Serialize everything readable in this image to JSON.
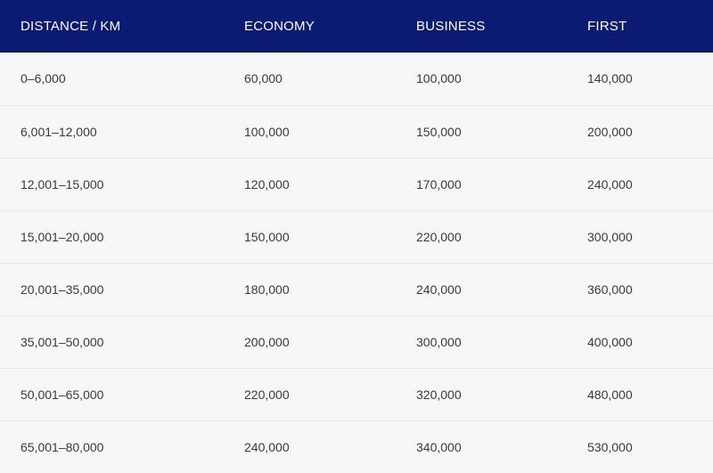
{
  "table": {
    "headers": [
      "DISTANCE / KM",
      "ECONOMY",
      "BUSINESS",
      "FIRST"
    ],
    "rows": [
      [
        "0–6,000",
        "60,000",
        "100,000",
        "140,000"
      ],
      [
        "6,001–12,000",
        "100,000",
        "150,000",
        "200,000"
      ],
      [
        "12,001–15,000",
        "120,000",
        "170,000",
        "240,000"
      ],
      [
        "15,001–20,000",
        "150,000",
        "220,000",
        "300,000"
      ],
      [
        "20,001–35,000",
        "180,000",
        "240,000",
        "360,000"
      ],
      [
        "35,001–50,000",
        "200,000",
        "300,000",
        "400,000"
      ],
      [
        "50,001–65,000",
        "220,000",
        "320,000",
        "480,000"
      ],
      [
        "65,001–80,000",
        "240,000",
        "340,000",
        "530,000"
      ]
    ]
  },
  "colors": {
    "header_background": "#0b1a72",
    "header_text": "#ffffff",
    "row_background": "#f7f7f7",
    "cell_text": "#3a3a3a"
  }
}
